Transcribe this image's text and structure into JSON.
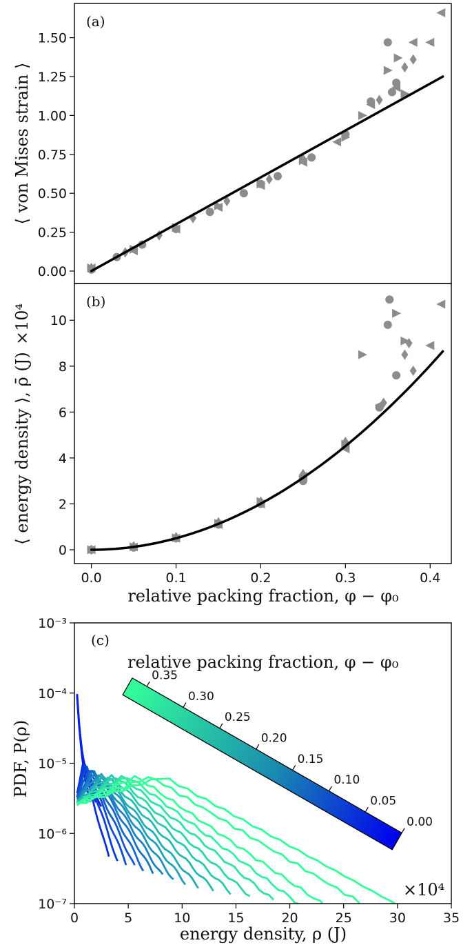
{
  "chart_data": [
    {
      "type": "scatter",
      "panel_label": "(a)",
      "ylabel": "⟨ von Mises strain ⟩",
      "xlabel": "",
      "xlim": [
        -0.02,
        0.425
      ],
      "ylim": [
        -0.08,
        1.72
      ],
      "yticks": [
        "0.00",
        "0.25",
        "0.50",
        "0.75",
        "1.00",
        "1.25",
        "1.50"
      ],
      "ytick_values": [
        0,
        0.25,
        0.5,
        0.75,
        1.0,
        1.25,
        1.5
      ],
      "marker_color": "#8c8c8c",
      "line_color": "#000000",
      "fit_line": {
        "x": [
          0.0,
          0.415
        ],
        "y": [
          0.0,
          1.25
        ]
      },
      "series": [
        {
          "marker": "circle",
          "x": [
            0.0,
            0.03,
            0.06,
            0.1,
            0.14,
            0.18,
            0.2,
            0.22,
            0.26,
            0.3,
            0.33,
            0.35,
            0.355,
            0.36
          ],
          "y": [
            0.01,
            0.09,
            0.17,
            0.27,
            0.38,
            0.5,
            0.56,
            0.61,
            0.73,
            0.88,
            1.09,
            1.47,
            1.15,
            1.21
          ]
        },
        {
          "marker": "diamond",
          "x": [
            0.0,
            0.04,
            0.08,
            0.12,
            0.16,
            0.21,
            0.25,
            0.3,
            0.34,
            0.37,
            0.38
          ],
          "y": [
            0.02,
            0.12,
            0.23,
            0.34,
            0.45,
            0.59,
            0.72,
            0.88,
            1.1,
            1.31,
            1.36
          ]
        },
        {
          "marker": "triangle-left",
          "x": [
            0.0,
            0.05,
            0.1,
            0.15,
            0.2,
            0.25,
            0.29,
            0.33,
            0.36,
            0.38,
            0.4,
            0.413
          ],
          "y": [
            0.02,
            0.13,
            0.27,
            0.41,
            0.55,
            0.7,
            0.83,
            1.07,
            1.18,
            1.47,
            1.47,
            1.66
          ]
        },
        {
          "marker": "triangle-right",
          "x": [
            0.0,
            0.05,
            0.1,
            0.15,
            0.2,
            0.25,
            0.3,
            0.32,
            0.35,
            0.362,
            0.37
          ],
          "y": [
            0.02,
            0.14,
            0.28,
            0.42,
            0.56,
            0.71,
            0.86,
            1.0,
            1.29,
            1.37,
            1.14
          ]
        }
      ]
    },
    {
      "type": "scatter",
      "panel_label": "(b)",
      "ylabel": "⟨ energy density ⟩, ρ̄ (J)",
      "y_multiplier": "×10⁴",
      "xlabel": "relative packing fraction, φ − φ₀",
      "xlim": [
        -0.02,
        0.425
      ],
      "ylim": [
        -0.6,
        11.6
      ],
      "xticks": [
        "0.0",
        "0.1",
        "0.2",
        "0.3",
        "0.4"
      ],
      "xtick_values": [
        0,
        0.1,
        0.2,
        0.3,
        0.4
      ],
      "yticks": [
        "0",
        "2",
        "4",
        "6",
        "8",
        "10"
      ],
      "ytick_values": [
        0,
        2,
        4,
        6,
        8,
        10
      ],
      "marker_color": "#8c8c8c",
      "line_color": "#000000",
      "fit_curve": {
        "type": "power",
        "a": 50.2,
        "p": 2.0,
        "x_range": [
          0.0,
          0.415
        ]
      },
      "series": [
        {
          "marker": "circle",
          "x": [
            0.0,
            0.05,
            0.1,
            0.15,
            0.2,
            0.25,
            0.3,
            0.34,
            0.35,
            0.36,
            0.352
          ],
          "y": [
            0.0,
            0.1,
            0.5,
            1.1,
            2.0,
            3.0,
            4.5,
            6.2,
            9.8,
            7.6,
            10.9
          ]
        },
        {
          "marker": "diamond",
          "x": [
            0.0,
            0.05,
            0.1,
            0.15,
            0.2,
            0.25,
            0.3,
            0.345,
            0.37,
            0.38,
            0.375
          ],
          "y": [
            0.0,
            0.15,
            0.55,
            1.2,
            2.1,
            3.3,
            4.7,
            6.4,
            8.5,
            7.8,
            9.0
          ]
        },
        {
          "marker": "triangle-left",
          "x": [
            0.0,
            0.05,
            0.1,
            0.15,
            0.2,
            0.25,
            0.3,
            0.34,
            0.4,
            0.413
          ],
          "y": [
            0.0,
            0.12,
            0.5,
            1.1,
            2.0,
            3.2,
            4.4,
            6.3,
            8.9,
            10.7
          ]
        },
        {
          "marker": "triangle-right",
          "x": [
            0.0,
            0.05,
            0.1,
            0.15,
            0.2,
            0.25,
            0.3,
            0.32,
            0.36,
            0.37
          ],
          "y": [
            0.0,
            0.13,
            0.52,
            1.15,
            2.1,
            3.1,
            4.6,
            8.5,
            10.3,
            9.1
          ]
        }
      ]
    },
    {
      "type": "line",
      "panel_label": "(c)",
      "ylabel": "PDF, P(ρ)",
      "xlabel": "energy density, ρ (J)",
      "x_multiplier": "×10⁴",
      "xlim": [
        0,
        35
      ],
      "ylim_log10": [
        -7,
        -3
      ],
      "y_scale": "log",
      "xticks": [
        "0",
        "5",
        "10",
        "15",
        "20",
        "25",
        "30",
        "35"
      ],
      "xtick_values": [
        0,
        5,
        10,
        15,
        20,
        25,
        30,
        35
      ],
      "yticks": [
        "10⁻³",
        "10⁻⁴",
        "10⁻⁵",
        "10⁻⁶",
        "10⁻⁷"
      ],
      "ytick_exponents": [
        -3,
        -4,
        -5,
        -6,
        -7
      ],
      "colormap": {
        "from": "#0000ee",
        "to": "#33ff9a"
      },
      "curves_phi": [
        0.01,
        0.03,
        0.05,
        0.07,
        0.09,
        0.11,
        0.13,
        0.15,
        0.17,
        0.19,
        0.21,
        0.23,
        0.25,
        0.27,
        0.29,
        0.31,
        0.33,
        0.35,
        0.37,
        0.39,
        0.41
      ],
      "curves_end_x": [
        1.5,
        2.0,
        2.5,
        3.2,
        4.0,
        4.8,
        5.6,
        6.4,
        7.3,
        8.2,
        9.2,
        10.3,
        11.5,
        12.9,
        14.5,
        16.3,
        18.5,
        21.0,
        24.0,
        29.5,
        34.5
      ],
      "colorbar": {
        "title": "relative packing fraction, φ − φ₀",
        "ticks": [
          "0.35",
          "0.30",
          "0.25",
          "0.20",
          "0.15",
          "0.10",
          "0.05",
          "0.00"
        ],
        "tick_values": [
          0.35,
          0.3,
          0.25,
          0.2,
          0.15,
          0.1,
          0.05,
          0.0
        ],
        "range": [
          0.0,
          0.37
        ],
        "orientation": "diagonal"
      }
    }
  ]
}
